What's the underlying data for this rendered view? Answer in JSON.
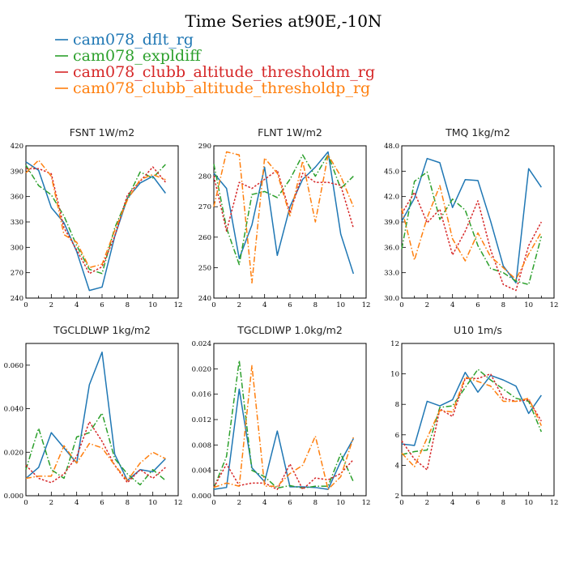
{
  "figure": {
    "title": "Time Series at90E,-10N",
    "legend": [
      {
        "label": "cam078_dflt_rg",
        "color": "#1f77b4",
        "dash": "solid"
      },
      {
        "label": "cam078_expldiff",
        "color": "#2ca02c",
        "dash": "dashdot"
      },
      {
        "label": "cam078_clubb_altitude_thresholdm_rg",
        "color": "#d62728",
        "dash": "dotted"
      },
      {
        "label": "cam078_clubb_altitude_thresholdp_rg",
        "color": "#ff7f0e",
        "dash": "dashdot"
      }
    ]
  },
  "chart_data": [
    {
      "type": "line",
      "title": "FSNT   1W/m2",
      "x": [
        0,
        1,
        2,
        3,
        4,
        5,
        6,
        7,
        8,
        9,
        10,
        11
      ],
      "xlim": [
        0,
        12
      ],
      "xticks": [
        "0",
        "2",
        "4",
        "6",
        "8",
        "10",
        "12"
      ],
      "ylim": [
        240,
        420
      ],
      "yticks": [
        "240",
        "270",
        "300",
        "330",
        "360",
        "390",
        "420"
      ],
      "series": [
        {
          "name": "cam078_dflt_rg",
          "values": [
            401,
            391,
            347,
            329,
            295,
            249,
            253,
            313,
            358,
            376,
            384,
            364
          ]
        },
        {
          "name": "cam078_expldiff",
          "values": [
            397,
            373,
            362,
            337,
            302,
            274,
            269,
            323,
            358,
            389,
            382,
            398
          ]
        },
        {
          "name": "cam078_clubb_altitude_thresholdm_rg",
          "values": [
            393,
            393,
            387,
            323,
            297,
            269,
            277,
            313,
            362,
            378,
            395,
            377
          ]
        },
        {
          "name": "cam078_clubb_altitude_thresholdp_rg",
          "values": [
            388,
            403,
            384,
            315,
            306,
            276,
            280,
            320,
            356,
            380,
            386,
            380
          ]
        }
      ]
    },
    {
      "type": "line",
      "title": "FLNT   1W/m2",
      "x": [
        0,
        1,
        2,
        3,
        4,
        5,
        6,
        7,
        8,
        9,
        10,
        11
      ],
      "xlim": [
        0,
        12
      ],
      "xticks": [
        "0",
        "2",
        "4",
        "6",
        "8",
        "10",
        "12"
      ],
      "ylim": [
        240,
        290
      ],
      "yticks": [
        "240",
        "250",
        "260",
        "270",
        "280",
        "290"
      ],
      "series": [
        {
          "name": "cam078_dflt_rg",
          "values": [
            281,
            276,
            253,
            264,
            283,
            254,
            270,
            279,
            283,
            288,
            261,
            248
          ]
        },
        {
          "name": "cam078_expldiff",
          "values": [
            284,
            263,
            251,
            274,
            275,
            273,
            279,
            287,
            280,
            287,
            276,
            280
          ]
        },
        {
          "name": "cam078_clubb_altitude_thresholdm_rg",
          "values": [
            280,
            262,
            278,
            276,
            279,
            282,
            268,
            281,
            278,
            278,
            277,
            263
          ]
        },
        {
          "name": "cam078_clubb_altitude_thresholdp_rg",
          "values": [
            270,
            288,
            287,
            245,
            286,
            281,
            267,
            285,
            265,
            287,
            280,
            270
          ]
        }
      ]
    },
    {
      "type": "line",
      "title": "TMQ   1kg/m2",
      "x": [
        0,
        1,
        2,
        3,
        4,
        5,
        6,
        7,
        8,
        9,
        10,
        11
      ],
      "xlim": [
        0,
        12
      ],
      "xticks": [
        "0",
        "2",
        "4",
        "6",
        "8",
        "10",
        "12"
      ],
      "ylim": [
        30,
        48
      ],
      "yticks": [
        "30.0",
        "33.0",
        "36.0",
        "39.0",
        "42.0",
        "45.0",
        "48.0"
      ],
      "series": [
        {
          "name": "cam078_dflt_rg",
          "values": [
            39.1,
            41.8,
            46.5,
            46.0,
            40.7,
            44.0,
            43.9,
            39.1,
            33.8,
            31.8,
            45.3,
            43.1
          ]
        },
        {
          "name": "cam078_expldiff",
          "values": [
            35.8,
            43.8,
            44.9,
            39.3,
            41.7,
            40.4,
            36.2,
            33.5,
            33.0,
            32.0,
            31.6,
            37.3
          ]
        },
        {
          "name": "cam078_clubb_altitude_thresholdm_rg",
          "values": [
            40.0,
            42.5,
            38.9,
            40.5,
            35.1,
            37.9,
            41.5,
            35.7,
            31.6,
            30.9,
            36.2,
            39.0
          ]
        },
        {
          "name": "cam078_clubb_altitude_thresholdp_rg",
          "values": [
            40.6,
            34.5,
            39.5,
            43.3,
            37.0,
            34.4,
            37.7,
            34.9,
            33.6,
            32.2,
            35.2,
            37.8
          ]
        }
      ]
    },
    {
      "type": "line",
      "title": "TGCLDLWP   1kg/m2",
      "x": [
        0,
        1,
        2,
        3,
        4,
        5,
        6,
        7,
        8,
        9,
        10,
        11
      ],
      "xlim": [
        0,
        12
      ],
      "xticks": [
        "0",
        "2",
        "4",
        "6",
        "8",
        "10",
        "12"
      ],
      "ylim": [
        0.0,
        0.07
      ],
      "yticks": [
        "0.000",
        "0.020",
        "0.040",
        "0.060"
      ],
      "ytickvalues": [
        0.0,
        0.02,
        0.04,
        0.06
      ],
      "series": [
        {
          "name": "cam078_dflt_rg",
          "values": [
            0.008,
            0.013,
            0.029,
            0.022,
            0.015,
            0.051,
            0.066,
            0.019,
            0.007,
            0.012,
            0.011,
            0.017
          ]
        },
        {
          "name": "cam078_expldiff",
          "values": [
            0.012,
            0.031,
            0.012,
            0.008,
            0.027,
            0.029,
            0.038,
            0.017,
            0.01,
            0.005,
            0.012,
            0.007
          ]
        },
        {
          "name": "cam078_clubb_altitude_thresholdm_rg",
          "values": [
            0.014,
            0.008,
            0.006,
            0.01,
            0.018,
            0.034,
            0.025,
            0.014,
            0.006,
            0.012,
            0.008,
            0.013
          ]
        },
        {
          "name": "cam078_clubb_altitude_thresholdp_rg",
          "values": [
            0.008,
            0.009,
            0.009,
            0.023,
            0.015,
            0.024,
            0.022,
            0.014,
            0.007,
            0.015,
            0.02,
            0.017
          ]
        }
      ]
    },
    {
      "type": "line",
      "title": "TGCLDIWP   1.0kg/m2",
      "x": [
        0,
        1,
        2,
        3,
        4,
        5,
        6,
        7,
        8,
        9,
        10,
        11
      ],
      "xlim": [
        0,
        12
      ],
      "xticks": [
        "0",
        "2",
        "4",
        "6",
        "8",
        "10",
        "12"
      ],
      "ylim": [
        0.0,
        0.024
      ],
      "yticks": [
        "0.000",
        "0.004",
        "0.008",
        "0.012",
        "0.016",
        "0.020",
        "0.024"
      ],
      "series": [
        {
          "name": "cam078_dflt_rg",
          "values": [
            0.001,
            0.0013,
            0.0168,
            0.0044,
            0.0022,
            0.0102,
            0.0014,
            0.0014,
            0.0013,
            0.001,
            0.0054,
            0.009
          ]
        },
        {
          "name": "cam078_expldiff",
          "values": [
            0.0012,
            0.0062,
            0.0213,
            0.004,
            0.003,
            0.0012,
            0.0016,
            0.0012,
            0.0015,
            0.0015,
            0.0066,
            0.0022
          ]
        },
        {
          "name": "cam078_clubb_altitude_thresholdm_rg",
          "values": [
            0.0013,
            0.005,
            0.0016,
            0.002,
            0.002,
            0.001,
            0.005,
            0.001,
            0.0028,
            0.0025,
            0.0035,
            0.0057
          ]
        },
        {
          "name": "cam078_clubb_altitude_thresholdp_rg",
          "values": [
            0.0013,
            0.002,
            0.0015,
            0.0205,
            0.0015,
            0.0015,
            0.0035,
            0.0048,
            0.0094,
            0.001,
            0.003,
            0.0092
          ]
        }
      ]
    },
    {
      "type": "line",
      "title": "U10   1m/s",
      "x": [
        0,
        1,
        2,
        3,
        4,
        5,
        6,
        7,
        8,
        9,
        10,
        11
      ],
      "xlim": [
        0,
        12
      ],
      "xticks": [
        "0",
        "2",
        "4",
        "6",
        "8",
        "10",
        "12"
      ],
      "ylim": [
        2,
        12
      ],
      "yticks": [
        "2",
        "4",
        "6",
        "8",
        "10",
        "12"
      ],
      "series": [
        {
          "name": "cam078_dflt_rg",
          "values": [
            5.4,
            5.3,
            8.2,
            7.9,
            8.3,
            10.1,
            8.8,
            9.9,
            9.6,
            9.2,
            7.4,
            8.6
          ]
        },
        {
          "name": "cam078_expldiff",
          "values": [
            4.7,
            4.9,
            5.0,
            7.8,
            7.9,
            9.1,
            10.3,
            9.6,
            9.0,
            8.4,
            8.2,
            6.2
          ]
        },
        {
          "name": "cam078_clubb_altitude_thresholdm_rg",
          "values": [
            5.6,
            4.4,
            3.7,
            7.7,
            7.2,
            9.7,
            9.7,
            10.0,
            8.4,
            8.2,
            8.3,
            6.9
          ]
        },
        {
          "name": "cam078_clubb_altitude_thresholdp_rg",
          "values": [
            4.8,
            3.9,
            5.8,
            7.6,
            7.5,
            9.8,
            9.5,
            9.2,
            8.2,
            8.2,
            8.4,
            6.6
          ]
        }
      ]
    }
  ]
}
